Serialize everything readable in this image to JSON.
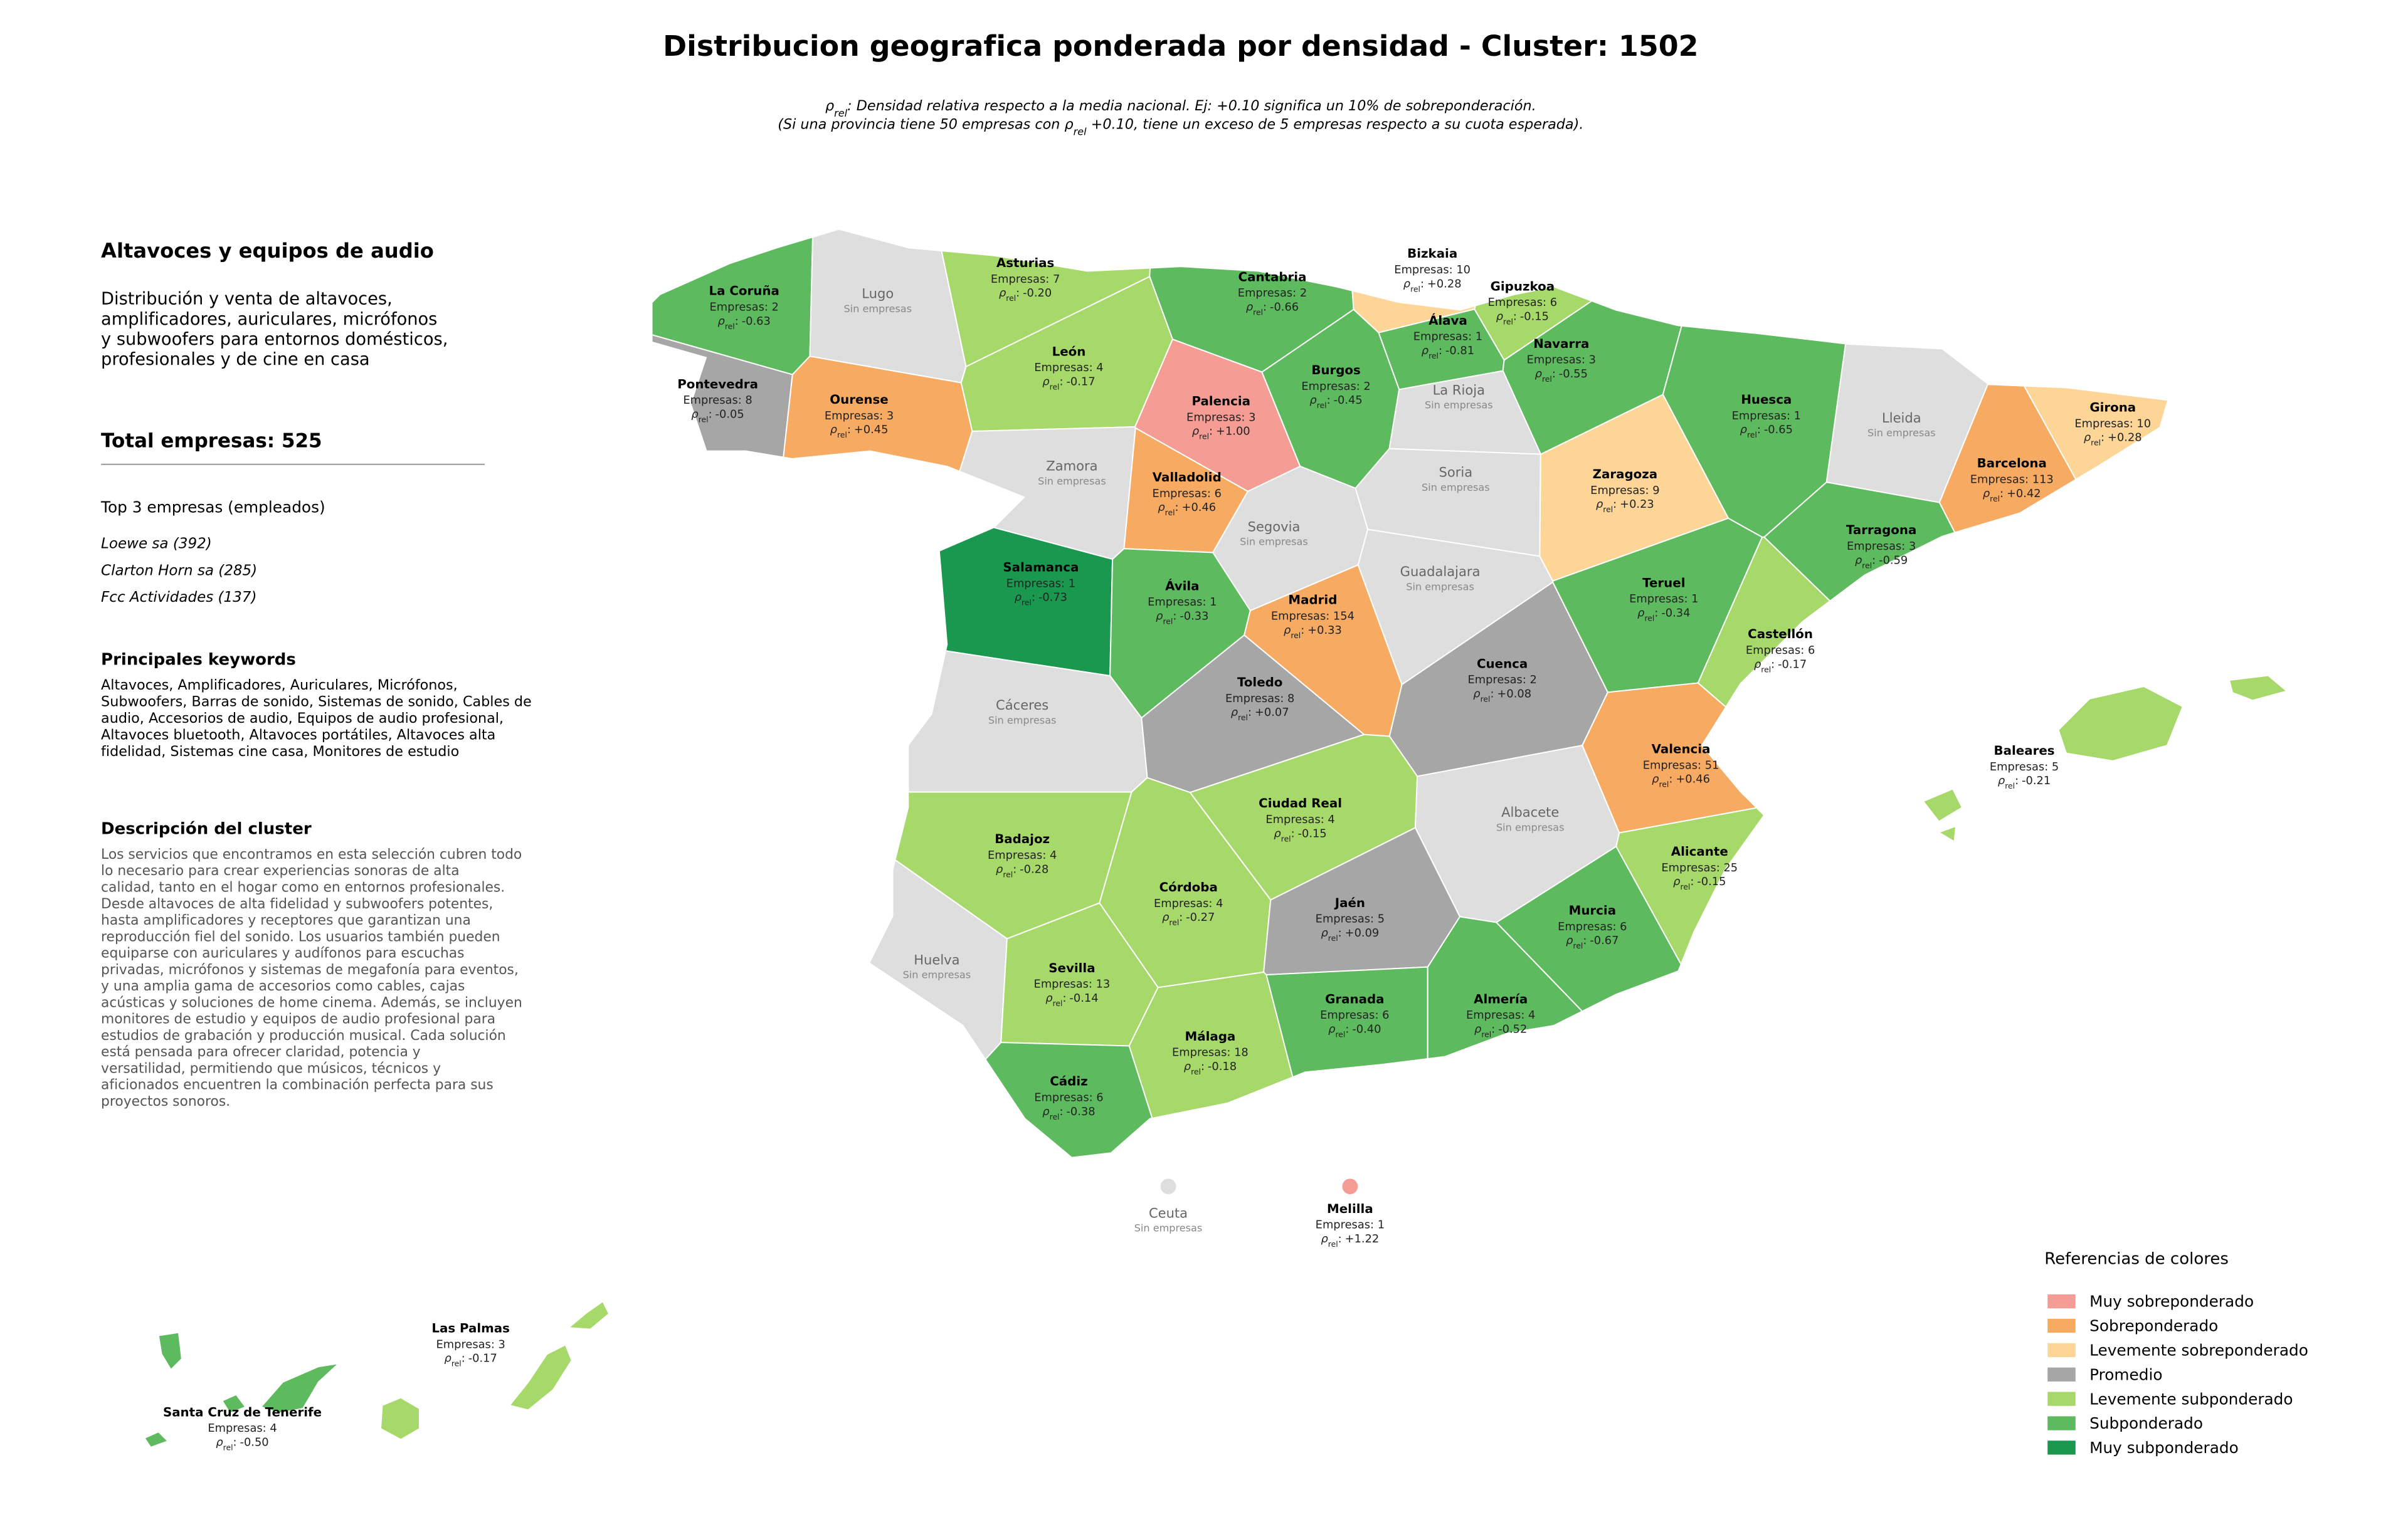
{
  "title": "Distribucion geografica ponderada por densidad - Cluster: 1502",
  "subtitle": [
    [
      "ρ",
      "rel",
      ": Densidad relativa respecto a la media nacional. Ej: +0.10 significa un 10% de sobreponderación."
    ],
    [
      "(Si una provincia tiene 50 empresas con ρ",
      "rel",
      " +0.10, tiene un exceso de 5 empresas respecto a su cuota esperada)."
    ]
  ],
  "panel": {
    "heading": "Altavoces y equipos de audio",
    "description": [
      "Distribución y venta de altavoces,",
      "amplificadores, auriculares, micrófonos",
      "y subwoofers para entornos domésticos,",
      "profesionales y de cine en casa"
    ],
    "total": "Total empresas: 525",
    "top_title": "Top 3 empresas (empleados)",
    "top": [
      "Loewe sa (392)",
      "Clarton Horn sa (285)",
      "Fcc Actividades (137)"
    ],
    "keywords_title": "Principales keywords",
    "keywords": [
      "Altavoces, Amplificadores, Auriculares, Micrófonos,",
      "Subwoofers, Barras de sonido, Sistemas de sonido, Cables de",
      "audio, Accesorios de audio, Equipos de audio profesional,",
      "Altavoces bluetooth, Altavoces portátiles, Altavoces alta",
      "fidelidad, Sistemas cine casa, Monitores de estudio"
    ],
    "cluster_title": "Descripción del cluster",
    "cluster_text": [
      "Los servicios que encontramos en esta selección cubren todo",
      "lo necesario para crear experiencias sonoras de alta",
      "calidad, tanto en el hogar como en entornos profesionales.",
      "Desde altavoces de alta fidelidad y subwoofers potentes,",
      "hasta amplificadores y receptores que garantizan una",
      "reproducción fiel del sonido. Los usuarios también pueden",
      "equiparse con auriculares y audífonos para escuchas",
      "privadas, micrófonos y sistemas de megafonía para eventos,",
      "y una amplia gama de accesorios como cables, cajas",
      "acústicas y soluciones de home cinema. Además, se incluyen",
      "monitores de estudio y equipos de audio profesional para",
      "estudios de grabación y producción musical. Cada solución",
      "está pensada para ofrecer claridad, potencia y",
      "versatilidad, permitiendo que músicos, técnicos y",
      "aficionados encuentren la combinación perfecta para sus",
      "proyectos sonoros."
    ]
  },
  "rho_label": [
    "ρ",
    "rel",
    ":"
  ],
  "provinces": [
    {
      "name": "La Coruña",
      "count": "Empresas: 2",
      "rho": "-0.63",
      "color": "#5eba5e"
    },
    {
      "name": "Lugo",
      "note": "Sin empresas",
      "color": "#dedede"
    },
    {
      "name": "Pontevedra",
      "count": "Empresas: 8",
      "rho": "-0.05",
      "color": "#a6a6a6"
    },
    {
      "name": "Ourense",
      "count": "Empresas: 3",
      "rho": "+0.45",
      "color": "#f7ab62"
    },
    {
      "name": "Asturias",
      "count": "Empresas: 7",
      "rho": "-0.20",
      "color": "#a6d96a"
    },
    {
      "name": "Cantabria",
      "count": "Empresas: 2",
      "rho": "-0.66",
      "color": "#5eba5e"
    },
    {
      "name": "Bizkaia",
      "count": "Empresas: 10",
      "rho": "+0.28",
      "color": "#fdd597"
    },
    {
      "name": "Gipuzkoa",
      "count": "Empresas: 6",
      "rho": "-0.15",
      "color": "#a6d96a"
    },
    {
      "name": "Álava",
      "count": "Empresas: 1",
      "rho": "-0.81",
      "color": "#5eba5e"
    },
    {
      "name": "Navarra",
      "count": "Empresas: 3",
      "rho": "-0.55",
      "color": "#5eba5e"
    },
    {
      "name": "León",
      "count": "Empresas: 4",
      "rho": "-0.17",
      "color": "#a6d96a"
    },
    {
      "name": "Palencia",
      "count": "Empresas: 3",
      "rho": "+1.00",
      "color": "#f59c95"
    },
    {
      "name": "Burgos",
      "count": "Empresas: 2",
      "rho": "-0.45",
      "color": "#5eba5e"
    },
    {
      "name": "La Rioja",
      "note": "Sin empresas",
      "color": "#dedede"
    },
    {
      "name": "Huesca",
      "count": "Empresas: 1",
      "rho": "-0.65",
      "color": "#5eba5e"
    },
    {
      "name": "Lleida",
      "note": "Sin empresas",
      "color": "#dedede"
    },
    {
      "name": "Girona",
      "count": "Empresas: 10",
      "rho": "+0.28",
      "color": "#fdd597"
    },
    {
      "name": "Barcelona",
      "count": "Empresas: 113",
      "rho": "+0.42",
      "color": "#f7ab62"
    },
    {
      "name": "Zamora",
      "note": "Sin empresas",
      "color": "#dedede"
    },
    {
      "name": "Valladolid",
      "count": "Empresas: 6",
      "rho": "+0.46",
      "color": "#f7ab62"
    },
    {
      "name": "Soria",
      "note": "Sin empresas",
      "color": "#dedede"
    },
    {
      "name": "Zaragoza",
      "count": "Empresas: 9",
      "rho": "+0.23",
      "color": "#fdd597"
    },
    {
      "name": "Tarragona",
      "count": "Empresas: 3",
      "rho": "-0.59",
      "color": "#5eba5e"
    },
    {
      "name": "Segovia",
      "note": "Sin empresas",
      "color": "#dedede"
    },
    {
      "name": "Salamanca",
      "count": "Empresas: 1",
      "rho": "-0.73",
      "color": "#1a9850"
    },
    {
      "name": "Ávila",
      "count": "Empresas: 1",
      "rho": "-0.33",
      "color": "#5eba5e"
    },
    {
      "name": "Madrid",
      "count": "Empresas: 154",
      "rho": "+0.33",
      "color": "#f7ab62"
    },
    {
      "name": "Guadalajara",
      "note": "Sin empresas",
      "color": "#dedede"
    },
    {
      "name": "Teruel",
      "count": "Empresas: 1",
      "rho": "-0.34",
      "color": "#5eba5e"
    },
    {
      "name": "Castellón",
      "count": "Empresas: 6",
      "rho": "-0.17",
      "color": "#a6d96a"
    },
    {
      "name": "Cáceres",
      "note": "Sin empresas",
      "color": "#dedede"
    },
    {
      "name": "Toledo",
      "count": "Empresas: 8",
      "rho": "+0.07",
      "color": "#a6a6a6"
    },
    {
      "name": "Cuenca",
      "count": "Empresas: 2",
      "rho": "+0.08",
      "color": "#a6a6a6"
    },
    {
      "name": "Valencia",
      "count": "Empresas: 51",
      "rho": "+0.46",
      "color": "#f7ab62"
    },
    {
      "name": "Badajoz",
      "count": "Empresas: 4",
      "rho": "-0.28",
      "color": "#a6d96a"
    },
    {
      "name": "Ciudad Real",
      "count": "Empresas: 4",
      "rho": "-0.15",
      "color": "#a6d96a"
    },
    {
      "name": "Albacete",
      "note": "Sin empresas",
      "color": "#dedede"
    },
    {
      "name": "Alicante",
      "count": "Empresas: 25",
      "rho": "-0.15",
      "color": "#a6d96a"
    },
    {
      "name": "Córdoba",
      "count": "Empresas: 4",
      "rho": "-0.27",
      "color": "#a6d96a"
    },
    {
      "name": "Jaén",
      "count": "Empresas: 5",
      "rho": "+0.09",
      "color": "#a6a6a6"
    },
    {
      "name": "Murcia",
      "count": "Empresas: 6",
      "rho": "-0.67",
      "color": "#5eba5e"
    },
    {
      "name": "Huelva",
      "note": "Sin empresas",
      "color": "#dedede"
    },
    {
      "name": "Sevilla",
      "count": "Empresas: 13",
      "rho": "-0.14",
      "color": "#a6d96a"
    },
    {
      "name": "Granada",
      "count": "Empresas: 6",
      "rho": "-0.40",
      "color": "#5eba5e"
    },
    {
      "name": "Almería",
      "count": "Empresas: 4",
      "rho": "-0.52",
      "color": "#5eba5e"
    },
    {
      "name": "Málaga",
      "count": "Empresas: 18",
      "rho": "-0.18",
      "color": "#a6d96a"
    },
    {
      "name": "Cádiz",
      "count": "Empresas: 6",
      "rho": "-0.38",
      "color": "#5eba5e"
    },
    {
      "name": "Baleares",
      "count": "Empresas: 5",
      "rho": "-0.21",
      "color": "#a6d96a"
    },
    {
      "name": "Las Palmas",
      "count": "Empresas: 3",
      "rho": "-0.17",
      "color": "#a6d96a"
    },
    {
      "name": "Santa Cruz de Tenerife",
      "count": "Empresas: 4",
      "rho": "-0.50",
      "color": "#5eba5e"
    },
    {
      "name": "Ceuta",
      "note": "Sin empresas",
      "color": "#dedede"
    },
    {
      "name": "Melilla",
      "count": "Empresas: 1",
      "rho": "+1.22",
      "color": "#f59c95"
    }
  ],
  "legend": {
    "title": "Referencias de colores",
    "items": [
      {
        "name": "Muy sobreponderado",
        "color": "#f59c95"
      },
      {
        "name": "Sobreponderado",
        "color": "#f7ab62"
      },
      {
        "name": "Levemente sobreponderado",
        "color": "#fdd597"
      },
      {
        "name": "Promedio",
        "color": "#a6a6a6"
      },
      {
        "name": "Levemente subponderado",
        "color": "#a6d96a"
      },
      {
        "name": "Subponderado",
        "color": "#5eba5e"
      },
      {
        "name": "Muy subponderado",
        "color": "#1a9850"
      }
    ]
  }
}
